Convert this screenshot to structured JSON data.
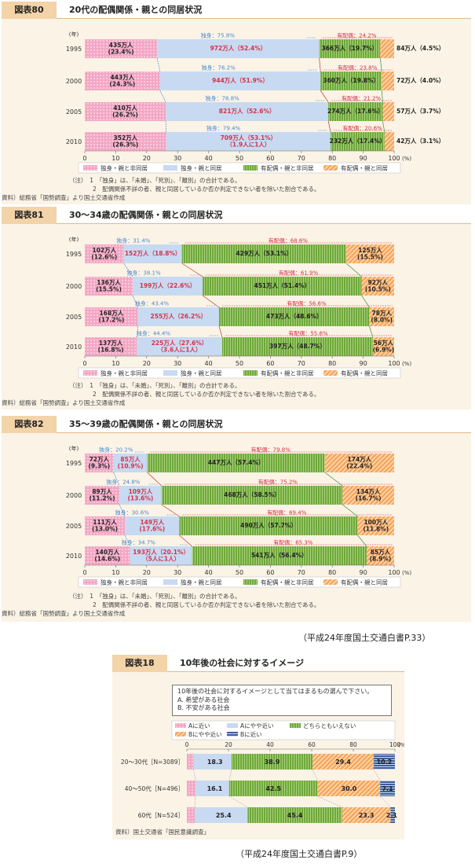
{
  "chart_data": [
    {
      "type": "bar",
      "figure_label": "図表80",
      "title": "20代の配偶関係・親との同居状況",
      "categories": [
        "1995",
        "2000",
        "2005",
        "2010"
      ],
      "year_unit": "(年)",
      "xlim": [
        0,
        100
      ],
      "ticks": [
        "0",
        "10",
        "20",
        "30",
        "40",
        "50",
        "60",
        "70",
        "80",
        "90",
        "100"
      ],
      "tick_unit": "(%)",
      "series": [
        {
          "name": "独身・親と非同居",
          "values": [
            23.4,
            24.3,
            26.2,
            26.3
          ],
          "labels": [
            "435万人|(23.4%)",
            "443万人|(24.3%)",
            "410万人|(26.2%)",
            "352万人|(26.3%)"
          ]
        },
        {
          "name": "独身・親と同居",
          "values": [
            52.4,
            51.9,
            52.6,
            53.1
          ],
          "labels": [
            "972万人（52.4%）",
            "944万人（51.9%）",
            "821万人（52.6%）",
            "709万人（53.1%）|（1.9人に1人）"
          ]
        },
        {
          "name": "有配偶・親と非同居",
          "values": [
            19.7,
            19.8,
            17.6,
            17.4
          ],
          "labels": [
            "366万人（19.7%）",
            "360万人（19.8%）",
            "274万人（17.6%）",
            "232万人（17.4%）"
          ]
        },
        {
          "name": "有配偶・親と同居",
          "values": [
            4.5,
            4.0,
            3.7,
            3.1
          ],
          "labels": [
            "84万人（4.5%）",
            "72万人（4.0%）",
            "57万人（3.7%）",
            "42万人（3.1%）"
          ]
        }
      ],
      "single_labels": [
        "独身：75.8%",
        "独身：76.2%",
        "独身：78.8%",
        "独身：79.4%"
      ],
      "married_labels": [
        "有配偶：24.2%",
        "有配偶：23.8%",
        "有配偶：21.2%",
        "有配偶：20.6%"
      ],
      "notes": [
        "（注）　1　「独身」は、「未婚」、「死別」、「離別」の合計である。",
        "　　　　2　配偶関係不詳の者、親と同居しているか否か判定できない者を除いた割合である。",
        "資料）総務省「国勢調査」より国土交通省作成"
      ]
    },
    {
      "type": "bar",
      "figure_label": "図表81",
      "title": "30～34歳の配偶関係・親との同居状況",
      "categories": [
        "1995",
        "2000",
        "2005",
        "2010"
      ],
      "year_unit": "(年)",
      "xlim": [
        0,
        100
      ],
      "ticks": [
        "0",
        "10",
        "20",
        "30",
        "40",
        "50",
        "60",
        "70",
        "80",
        "90",
        "100"
      ],
      "tick_unit": "(%)",
      "series": [
        {
          "name": "独身・親と非同居",
          "values": [
            12.6,
            15.5,
            17.2,
            16.8
          ],
          "labels": [
            "102万人|(12.6%)",
            "136万人|(15.5%)",
            "168万人|(17.2%)",
            "137万人|(16.8%)"
          ]
        },
        {
          "name": "独身・親と同居",
          "values": [
            18.8,
            22.6,
            26.2,
            27.6
          ],
          "labels": [
            "152万人（18.8%）",
            "199万人（22.6%）",
            "255万人（26.2%）",
            "225万人（27.6%）|（3.6人に1人）"
          ]
        },
        {
          "name": "有配偶・親と非同居",
          "values": [
            53.1,
            51.4,
            48.6,
            48.7
          ],
          "labels": [
            "429万人（53.1%）",
            "451万人（51.4%）",
            "473万人（48.6%）",
            "397万人（48.7%）"
          ]
        },
        {
          "name": "有配偶・親と同居",
          "values": [
            15.5,
            10.5,
            8.0,
            6.9
          ],
          "labels": [
            "125万人|(15.5%)",
            "92万人|(10.5%)",
            "78万人|(8.0%)",
            "56万人|(6.9%)"
          ]
        }
      ],
      "single_labels": [
        "独身：31.4%",
        "独身：38.1%",
        "独身：43.4%",
        "独身：44.4%"
      ],
      "married_labels": [
        "有配偶：68.6%",
        "有配偶：61.9%",
        "有配偶：56.6%",
        "有配偶：55.6%"
      ],
      "notes": [
        "（注）　1　「独身」は、「未婚」、「死別」、「離別」の合計である。",
        "　　　　2　配偶関係不詳の者、親と同居しているか否か判定できない者を除いた割合である。",
        "資料）総務省「国勢調査」より国土交通省作成"
      ]
    },
    {
      "type": "bar",
      "figure_label": "図表82",
      "title": "35～39歳の配偶関係・親との同居状況",
      "categories": [
        "1995",
        "2000",
        "2005",
        "2010"
      ],
      "year_unit": "(年)",
      "xlim": [
        0,
        100
      ],
      "ticks": [
        "0",
        "10",
        "20",
        "30",
        "40",
        "50",
        "60",
        "70",
        "80",
        "90",
        "100"
      ],
      "tick_unit": "(%)",
      "series": [
        {
          "name": "独身・親と非同居",
          "values": [
            9.3,
            11.2,
            13.0,
            14.6
          ],
          "labels": [
            "72万人|(9.3%)",
            "89万人|(11.2%)",
            "111万人|(13.0%)",
            "140万人|(14.6%)"
          ]
        },
        {
          "name": "独身・親と同居",
          "values": [
            10.9,
            13.6,
            17.6,
            20.1
          ],
          "labels": [
            "85万人|(10.9%)",
            "109万人|(13.6%)",
            "149万人|(17.6%)",
            "193万人（20.1%）|（5人に1人）"
          ]
        },
        {
          "name": "有配偶・親と非同居",
          "values": [
            57.4,
            58.5,
            57.7,
            56.4
          ],
          "labels": [
            "447万人（57.4%）",
            "468万人（58.5%）",
            "490万人（57.7%）",
            "541万人（56.4%）"
          ]
        },
        {
          "name": "有配偶・親と同居",
          "values": [
            22.4,
            16.7,
            11.8,
            8.9
          ],
          "labels": [
            "174万人|(22.4%)",
            "134万人|(16.7%)",
            "100万人|(11.8%)",
            "85万人|(8.9%)"
          ]
        }
      ],
      "single_labels": [
        "独身：20.2%",
        "独身：24.8%",
        "独身：30.6%",
        "独身：34.7%"
      ],
      "married_labels": [
        "有配偶：79.8%",
        "有配偶：75.2%",
        "有配偶：69.4%",
        "有配偶：65.3%"
      ],
      "notes": [
        "（注）　1　「独身」は、「未婚」、「死別」、「離別」の合計である。",
        "　　　　2　配偶関係不詳の者、親と同居しているか否か判定できない者を除いた割合である。",
        "資料）総務省「国勢調査」より国土交通省作成"
      ]
    },
    {
      "type": "bar",
      "figure_label": "図表18",
      "title": "10年後の社会に対するイメージ",
      "question": [
        "10年後の社会に対するイメージとして当てはまるもの選んで下さい。",
        "A. 希望がある社会",
        "B. 不安がある社会"
      ],
      "categories": [
        "20～30代［N=3089］",
        "40～50代［N=496］",
        "60代［N=524］"
      ],
      "xlim": [
        0,
        100
      ],
      "ticks": [
        "0",
        "20",
        "40",
        "60",
        "80",
        "100"
      ],
      "tick_unit": "(%)",
      "series": [
        {
          "name": "Aに近い",
          "values": [
            3.2,
            4.2,
            3.8
          ]
        },
        {
          "name": "Aにやや近い",
          "values": [
            18.3,
            16.1,
            25.4
          ]
        },
        {
          "name": "どちらともいえない",
          "values": [
            38.9,
            42.5,
            45.4
          ]
        },
        {
          "name": "Bにやや近い",
          "values": [
            29.4,
            30.0,
            23.3
          ]
        },
        {
          "name": "Bに近い",
          "values": [
            10.2,
            7.1,
            2.1
          ]
        }
      ],
      "notes": [
        "資料）国土交通省「国民意識調査」"
      ]
    }
  ],
  "sources": {
    "top": "（平成24年度国土交通白書P.33）",
    "bottom": "（平成24年度国土交通白書P.9）"
  },
  "colors": {
    "pink": "#f3a7c4",
    "pink_dot": "#fde6ef",
    "blue": "#c7daf1",
    "green": "#6fa83c",
    "green_line": "#a9d37a",
    "orange": "#f7a65a",
    "orange_line": "#fbe0c3",
    "navy": "#3c5f99",
    "navy_line": "#c9d7ee",
    "red_text": "#d7304a",
    "blue_text": "#4a8ad0"
  }
}
